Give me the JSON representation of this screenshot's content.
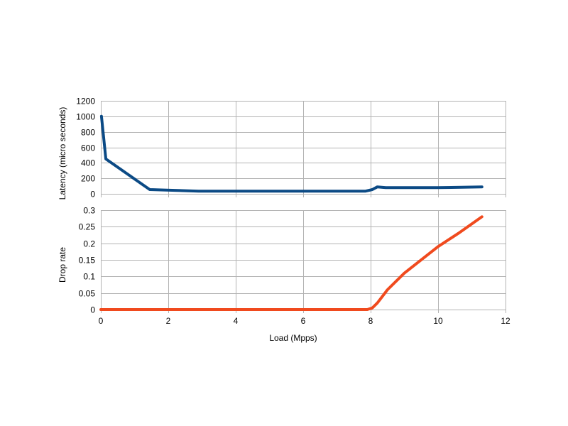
{
  "chart_data": {
    "type": "line",
    "xlabel": "Load (Mpps)",
    "xlim": [
      0,
      12
    ],
    "xticks": [
      "0",
      "2",
      "4",
      "6",
      "8",
      "10",
      "12"
    ],
    "grid": true,
    "panels": [
      {
        "id": "latency",
        "ylabel": "Latency (micro seconds)",
        "ylim": [
          0,
          1200
        ],
        "yticks": [
          "0",
          "200",
          "400",
          "600",
          "800",
          "1000",
          "1200"
        ],
        "color": "#0b4a85",
        "x": [
          0.02,
          0.15,
          1.45,
          2.2,
          2.9,
          4.0,
          6.0,
          7.85,
          8.05,
          8.2,
          8.45,
          10.0,
          10.7,
          11.3
        ],
        "y": [
          1000,
          450,
          55,
          45,
          35,
          35,
          35,
          35,
          55,
          90,
          80,
          80,
          85,
          90
        ]
      },
      {
        "id": "drop",
        "ylabel": "Drop rate",
        "ylim": [
          0,
          0.3
        ],
        "yticks": [
          "0",
          "0.05",
          "0.1",
          "0.15",
          "0.2",
          "0.25",
          "0.3"
        ],
        "color": "#f04a1e",
        "x": [
          0.0,
          2.0,
          4.0,
          6.0,
          7.9,
          8.05,
          8.2,
          8.5,
          9.0,
          10.0,
          10.6,
          11.3
        ],
        "y": [
          0,
          0,
          0,
          0,
          0,
          0.005,
          0.02,
          0.06,
          0.11,
          0.19,
          0.23,
          0.28
        ]
      }
    ]
  }
}
